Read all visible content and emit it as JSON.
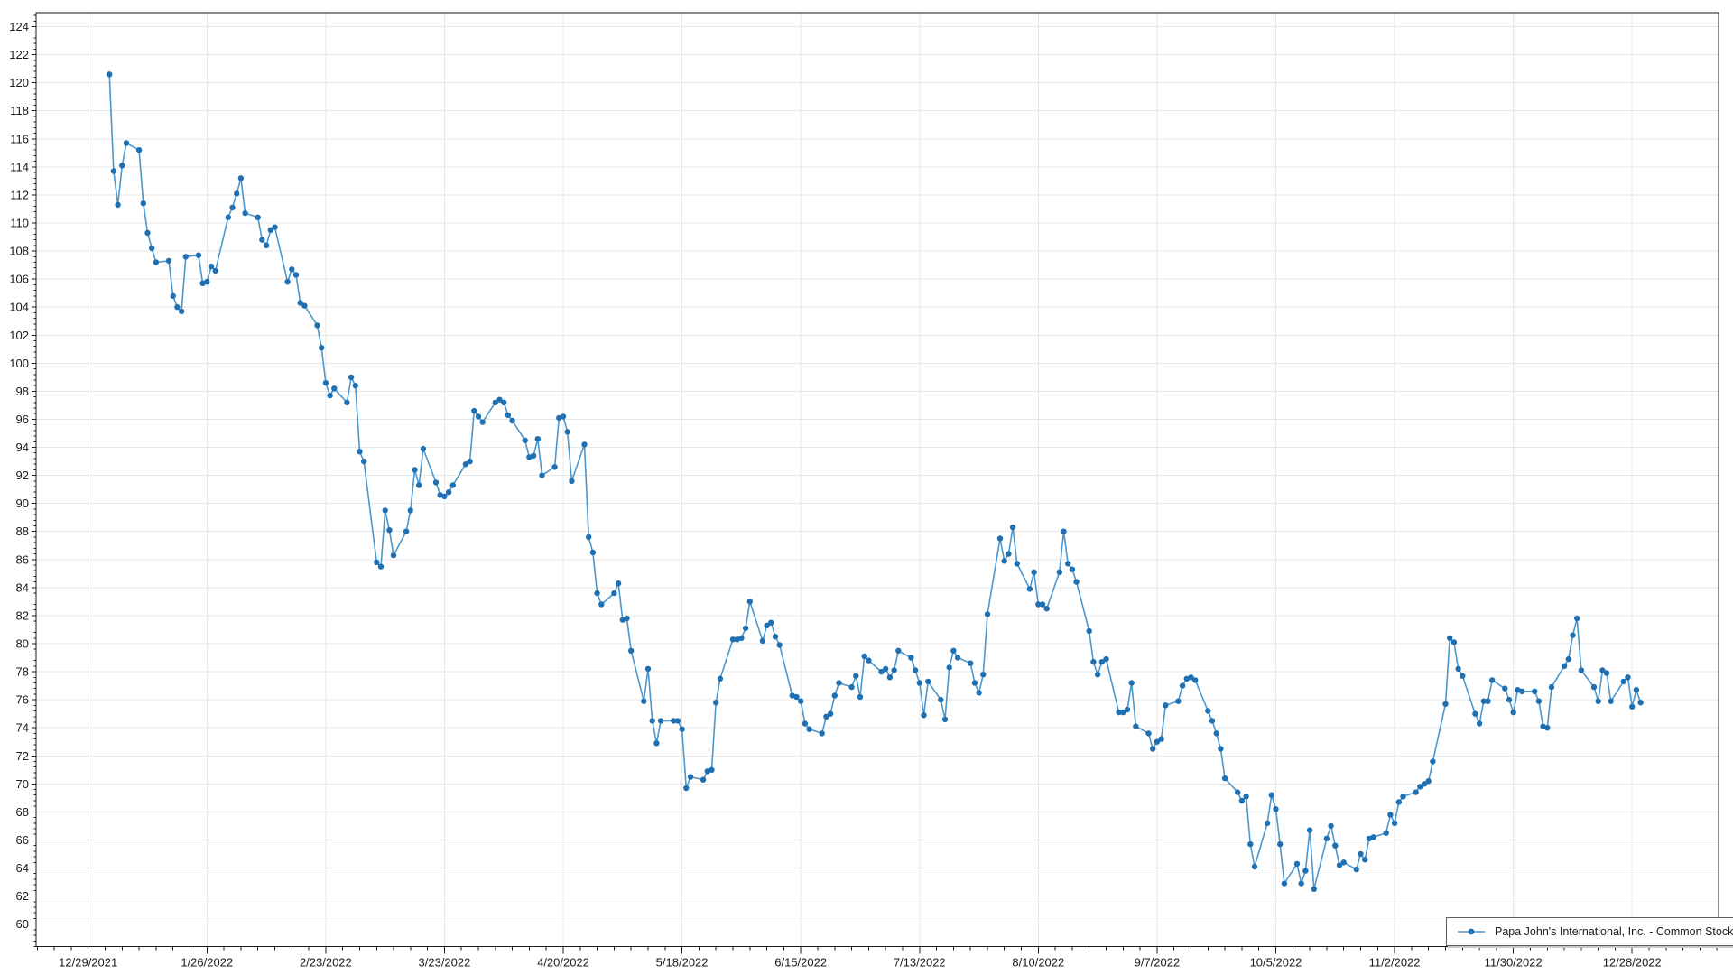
{
  "app": {
    "background": "#ffffff"
  },
  "chart_data": {
    "type": "line",
    "title": "",
    "xlabel": "",
    "ylabel": "",
    "grid": true,
    "gridline_color": "#e7e7e7",
    "plot_border_color": "#1a1a1a",
    "ylim": [
      58.4,
      125.0
    ],
    "x_axis": {
      "first_tick_date": "2021-12-29",
      "major_tick_interval_days": 28,
      "minor_tick_interval_days": 4,
      "tick_labels": [
        "12/29/2021",
        "1/26/2022",
        "2/23/2022",
        "3/23/2022",
        "4/20/2022",
        "5/18/2022",
        "6/15/2022",
        "7/13/2022",
        "8/10/2022",
        "9/7/2022",
        "10/5/2022",
        "11/2/2022",
        "11/30/2022",
        "12/28/2022"
      ]
    },
    "y_axis": {
      "major_step": 2,
      "minor_step": 0.4,
      "tick_labels": [
        60,
        62,
        64,
        66,
        68,
        70,
        72,
        74,
        76,
        78,
        80,
        82,
        84,
        86,
        88,
        90,
        92,
        94,
        96,
        98,
        100,
        102,
        104,
        106,
        108,
        110,
        112,
        114,
        116,
        118,
        120,
        122,
        124
      ]
    },
    "legend": {
      "label": "Papa John's International, Inc. - Common Stock",
      "position": "bottom-right"
    },
    "series": [
      {
        "name": "Papa John's International, Inc. - Common Stock",
        "line_color": "#4D97CC",
        "marker": "circle",
        "marker_color": "#1E70B2",
        "x_start_date": "2022-01-03",
        "x_end_date": "2022-12-30",
        "x_frequency": "business_days",
        "values": [
          120.6,
          113.7,
          111.3,
          114.1,
          115.7,
          115.2,
          111.4,
          109.3,
          108.2,
          107.2,
          107.3,
          104.8,
          104.0,
          103.7,
          107.6,
          107.7,
          105.7,
          105.8,
          106.9,
          106.6,
          110.4,
          111.1,
          112.1,
          113.2,
          110.7,
          110.4,
          108.8,
          108.4,
          109.5,
          109.7,
          105.8,
          106.7,
          106.3,
          104.3,
          104.1,
          102.7,
          101.1,
          98.6,
          97.7,
          98.2,
          97.2,
          99.0,
          98.4,
          93.7,
          93.0,
          85.8,
          85.5,
          89.5,
          88.1,
          86.3,
          88.0,
          89.5,
          92.4,
          91.3,
          93.9,
          91.5,
          90.6,
          90.5,
          90.8,
          91.3,
          92.8,
          93.0,
          96.6,
          96.2,
          95.8,
          97.2,
          97.4,
          97.2,
          96.3,
          95.9,
          94.5,
          93.3,
          93.4,
          94.6,
          92.0,
          92.6,
          96.1,
          96.2,
          95.1,
          91.6,
          94.2,
          87.6,
          86.5,
          83.6,
          82.8,
          83.6,
          84.3,
          81.7,
          81.8,
          79.5,
          75.9,
          78.2,
          74.5,
          72.9,
          74.5,
          74.5,
          74.5,
          73.9,
          69.7,
          70.5,
          70.3,
          70.9,
          71.0,
          75.8,
          77.5,
          80.3,
          80.3,
          80.4,
          81.1,
          83.0,
          80.2,
          81.3,
          81.5,
          80.5,
          79.9,
          76.3,
          76.2,
          75.9,
          74.3,
          73.9,
          73.6,
          74.8,
          75.0,
          76.3,
          77.2,
          76.9,
          77.7,
          76.2,
          79.1,
          78.8,
          78.0,
          78.2,
          77.6,
          78.1,
          79.5,
          79.0,
          78.1,
          77.2,
          74.9,
          77.3,
          76.0,
          74.6,
          78.3,
          79.5,
          79.0,
          78.6,
          77.2,
          76.5,
          77.8,
          82.1,
          87.5,
          85.9,
          86.4,
          88.3,
          85.7,
          83.9,
          85.1,
          82.8,
          82.8,
          82.5,
          85.1,
          88.0,
          85.7,
          85.3,
          84.4,
          80.9,
          78.7,
          77.8,
          78.7,
          78.9,
          75.1,
          75.1,
          75.3,
          77.2,
          74.1,
          73.6,
          72.5,
          73.0,
          73.2,
          75.6,
          75.9,
          77.0,
          77.5,
          77.6,
          77.4,
          75.2,
          74.5,
          73.6,
          72.5,
          70.4,
          69.4,
          68.8,
          69.1,
          65.7,
          64.1,
          67.2,
          69.2,
          68.2,
          65.7,
          62.9,
          64.3,
          62.9,
          63.8,
          66.7,
          62.5,
          66.1,
          67.0,
          65.6,
          64.2,
          64.4,
          63.9,
          65.0,
          64.6,
          66.1,
          66.2,
          66.5,
          67.8,
          67.2,
          68.7,
          69.1,
          69.4,
          69.8,
          70.0,
          70.2,
          71.6,
          75.7,
          80.4,
          80.1,
          78.2,
          77.7,
          75.0,
          74.3,
          75.9,
          75.9,
          77.4,
          76.8,
          76.0,
          75.1,
          76.7,
          76.6,
          76.6,
          75.9,
          74.1,
          74.0,
          76.9,
          78.4,
          78.9,
          80.6,
          81.8,
          78.1,
          76.9,
          75.9,
          78.1,
          77.9,
          75.9,
          77.3,
          77.6,
          75.5,
          76.7,
          75.8
        ]
      }
    ]
  }
}
